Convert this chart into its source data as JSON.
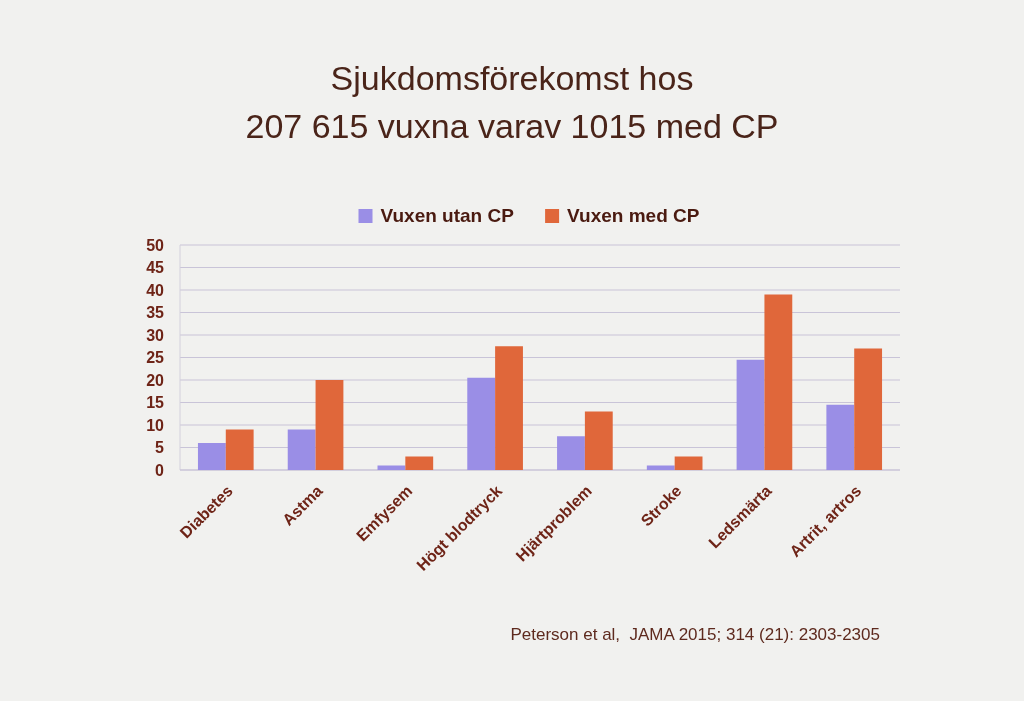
{
  "chart_data": {
    "type": "bar",
    "title": "Sjukdomsförekomst hos\n207 615 vuxna varav 1015 med CP",
    "categories": [
      "Diabetes",
      "Astma",
      "Emfysem",
      "Högt blodtryck",
      "Hjärtproblem",
      "Stroke",
      "Ledsmärta",
      "Artrit, artros"
    ],
    "series": [
      {
        "name": "Vuxen utan CP",
        "color": "#9a8ee6",
        "values": [
          6,
          9,
          1,
          20.5,
          7.5,
          1,
          24.5,
          14.5
        ]
      },
      {
        "name": "Vuxen med CP",
        "color": "#e0673a",
        "values": [
          9,
          20,
          3,
          27.5,
          13,
          3,
          39,
          27
        ]
      }
    ],
    "ylim": [
      0,
      50
    ],
    "yticks": [
      0,
      5,
      10,
      15,
      20,
      25,
      30,
      35,
      40,
      45,
      50
    ],
    "grid": "y",
    "legend": "top",
    "annotations": [
      "Peterson et al,  JAMA 2015; 314 (21): 2303-2305"
    ]
  }
}
